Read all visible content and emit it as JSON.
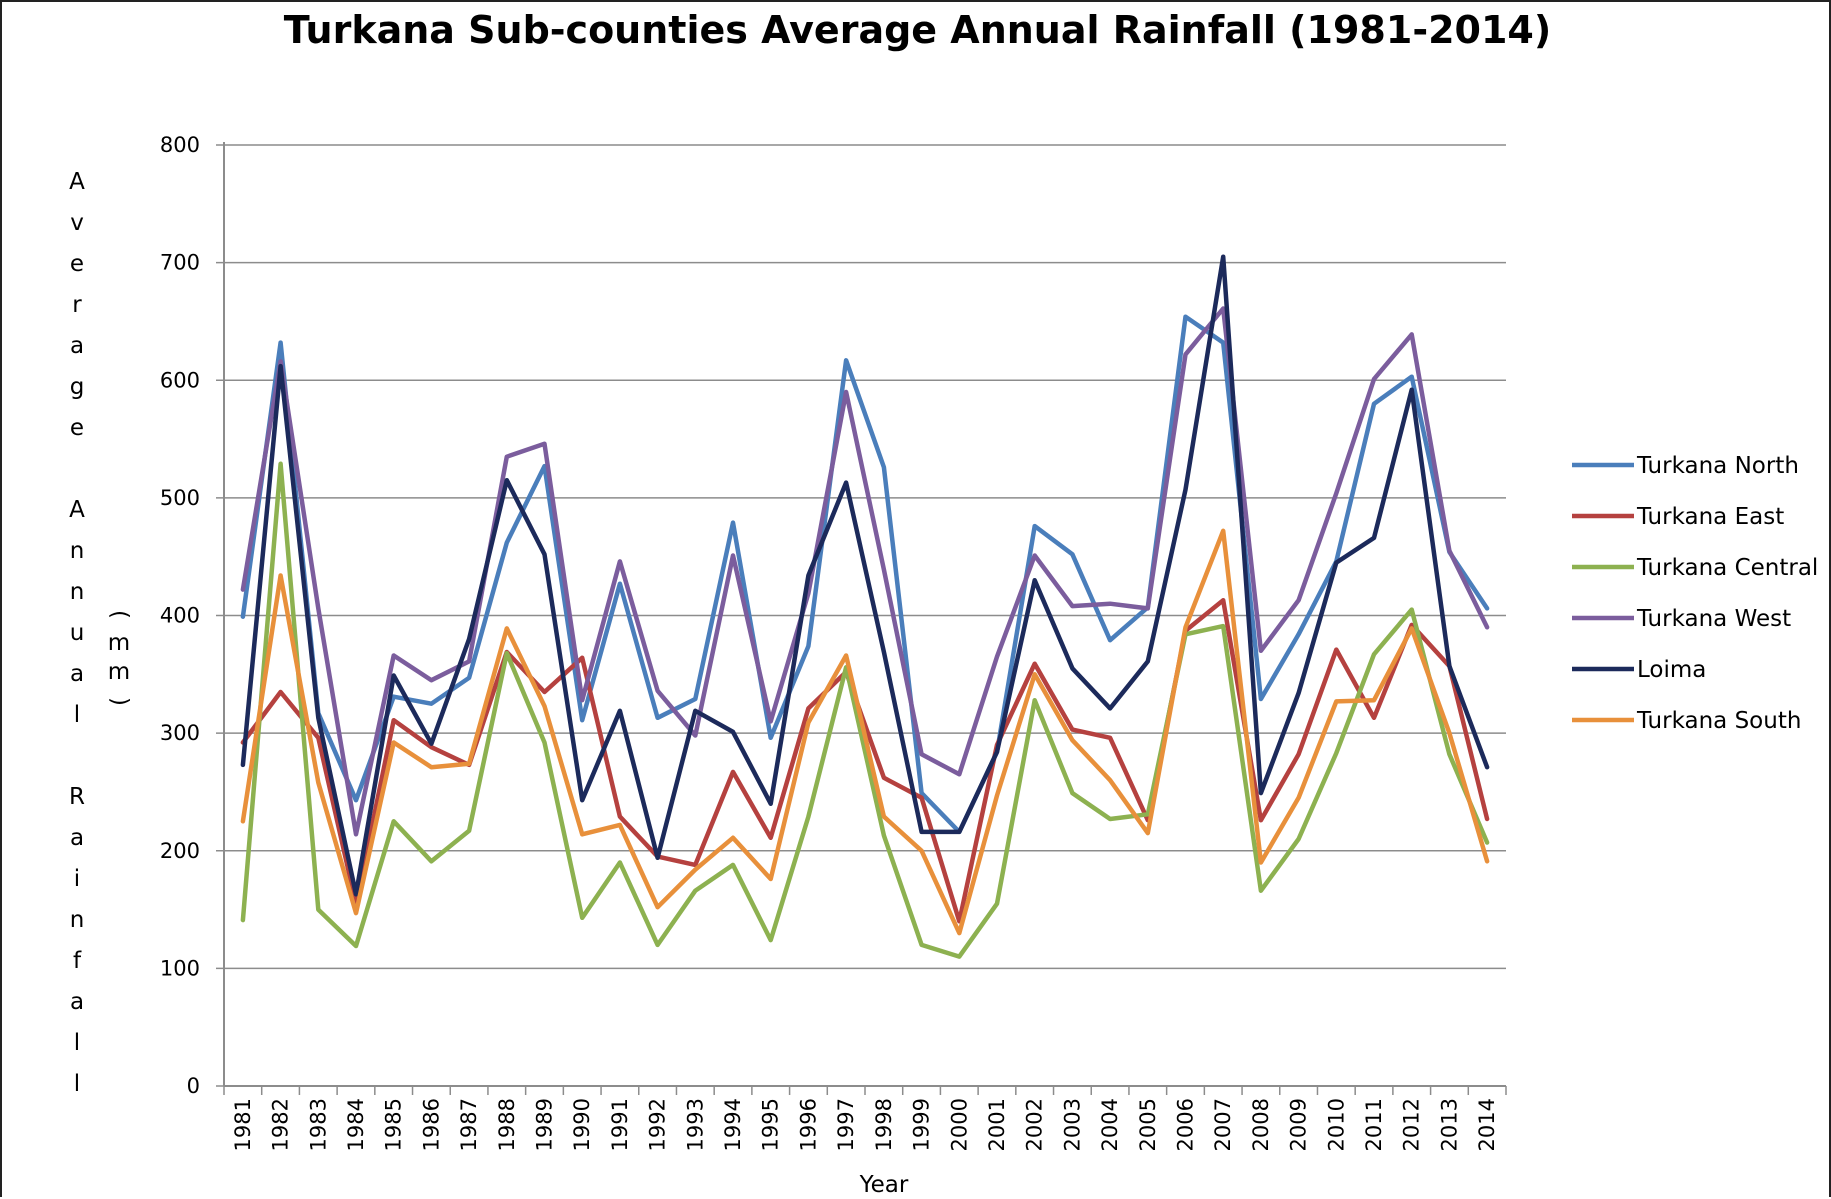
{
  "chart_data": {
    "type": "line",
    "title": "Turkana Sub-counties Average Annual Rainfall (1981-2014)",
    "xlabel": "Year",
    "ylabel": "Average Annual Rainfall",
    "ylabel_unit": "(mm)",
    "ylim": [
      0,
      800
    ],
    "yticks": [
      0,
      100,
      200,
      300,
      400,
      500,
      600,
      700,
      800
    ],
    "grid": true,
    "legend_position": "right",
    "categories": [
      "1981",
      "1982",
      "1983",
      "1984",
      "1985",
      "1986",
      "1987",
      "1988",
      "1989",
      "1990",
      "1991",
      "1992",
      "1993",
      "1994",
      "1995",
      "1996",
      "1997",
      "1998",
      "1999",
      "2000",
      "2001",
      "2002",
      "2003",
      "2004",
      "2005",
      "2006",
      "2007",
      "2008",
      "2009",
      "2010",
      "2011",
      "2012",
      "2013",
      "2014"
    ],
    "series": [
      {
        "name": "Turkana North",
        "color": "#4a7ebb",
        "values": [
          399,
          632,
          317,
          243,
          331,
          325,
          347,
          462,
          527,
          311,
          427,
          313,
          329,
          479,
          296,
          374,
          617,
          526,
          249,
          216,
          284,
          476,
          452,
          379,
          407,
          654,
          632,
          329,
          384,
          446,
          580,
          603,
          454,
          406
        ]
      },
      {
        "name": "Turkana East",
        "color": "#b5413f",
        "values": [
          292,
          335,
          296,
          155,
          311,
          288,
          273,
          369,
          335,
          364,
          229,
          195,
          188,
          267,
          211,
          321,
          352,
          262,
          245,
          140,
          290,
          359,
          303,
          296,
          226,
          387,
          413,
          226,
          282,
          371,
          313,
          392,
          357,
          227
        ]
      },
      {
        "name": "Turkana Central",
        "color": "#8db150",
        "values": [
          141,
          529,
          150,
          119,
          225,
          191,
          217,
          368,
          292,
          143,
          190,
          120,
          166,
          188,
          124,
          229,
          356,
          213,
          120,
          110,
          155,
          328,
          249,
          227,
          231,
          384,
          391,
          166,
          210,
          283,
          367,
          405,
          282,
          207
        ]
      },
      {
        "name": "Turkana West",
        "color": "#7b5d9d",
        "values": [
          422,
          616,
          406,
          214,
          366,
          345,
          361,
          535,
          546,
          328,
          446,
          336,
          298,
          451,
          310,
          419,
          590,
          439,
          282,
          265,
          365,
          451,
          408,
          410,
          406,
          622,
          661,
          370,
          413,
          504,
          601,
          639,
          455,
          390
        ]
      },
      {
        "name": "Loima",
        "color": "#1c2a5b",
        "values": [
          273,
          612,
          313,
          163,
          349,
          291,
          380,
          515,
          452,
          243,
          319,
          194,
          319,
          301,
          240,
          434,
          513,
          369,
          216,
          216,
          284,
          430,
          355,
          321,
          361,
          507,
          705,
          249,
          334,
          445,
          466,
          592,
          357,
          271
        ]
      },
      {
        "name": "Turkana South",
        "color": "#e8903b",
        "values": [
          225,
          434,
          258,
          147,
          292,
          271,
          274,
          389,
          323,
          214,
          222,
          152,
          184,
          211,
          176,
          309,
          366,
          229,
          200,
          130,
          247,
          350,
          294,
          260,
          215,
          390,
          472,
          190,
          245,
          327,
          328,
          389,
          300,
          191
        ]
      }
    ]
  }
}
